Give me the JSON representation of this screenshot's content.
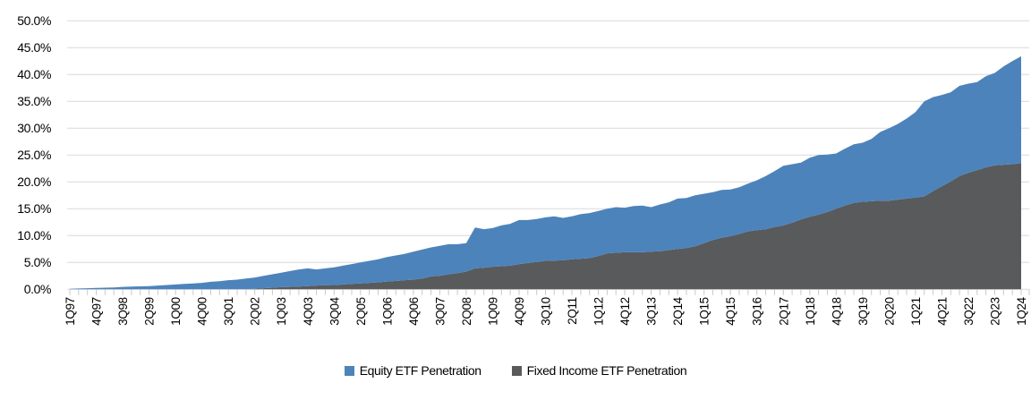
{
  "chart_data": {
    "type": "area",
    "stacked": true,
    "title": "",
    "xlabel": "",
    "ylabel": "",
    "ylim": [
      0,
      50
    ],
    "ytick_step": 5,
    "y_tick_labels": [
      "0.0%",
      "5.0%",
      "10.0%",
      "15.0%",
      "20.0%",
      "25.0%",
      "30.0%",
      "35.0%",
      "40.0%",
      "45.0%",
      "50.0%"
    ],
    "grid": "horizontal",
    "legend_position": "bottom-center",
    "x_label_interval": 3,
    "x_tick_labels_shown": [
      "1Q97",
      "4Q97",
      "3Q98",
      "2Q99",
      "1Q00",
      "4Q00",
      "3Q01",
      "2Q02",
      "1Q03",
      "4Q03",
      "3Q04",
      "2Q05",
      "1Q06",
      "4Q06",
      "3Q07",
      "2Q08",
      "1Q09",
      "4Q09",
      "3Q10",
      "2Q11",
      "1Q12",
      "4Q12",
      "3Q13",
      "2Q14",
      "1Q15",
      "4Q15",
      "3Q16",
      "2Q17",
      "1Q18",
      "4Q18",
      "3Q19",
      "2Q20",
      "1Q21",
      "4Q21",
      "3Q22",
      "2Q23",
      "1Q24"
    ],
    "categories": [
      "1Q97",
      "2Q97",
      "3Q97",
      "4Q97",
      "1Q98",
      "2Q98",
      "3Q98",
      "4Q98",
      "1Q99",
      "2Q99",
      "3Q99",
      "4Q99",
      "1Q00",
      "2Q00",
      "3Q00",
      "4Q00",
      "1Q01",
      "2Q01",
      "3Q01",
      "4Q01",
      "1Q02",
      "2Q02",
      "3Q02",
      "4Q02",
      "1Q03",
      "2Q03",
      "3Q03",
      "4Q03",
      "1Q04",
      "2Q04",
      "3Q04",
      "4Q04",
      "1Q05",
      "2Q05",
      "3Q05",
      "4Q05",
      "1Q06",
      "2Q06",
      "3Q06",
      "4Q06",
      "1Q07",
      "2Q07",
      "3Q07",
      "4Q07",
      "1Q08",
      "2Q08",
      "3Q08",
      "4Q08",
      "1Q09",
      "2Q09",
      "3Q09",
      "4Q09",
      "1Q10",
      "2Q10",
      "3Q10",
      "4Q10",
      "1Q11",
      "2Q11",
      "3Q11",
      "4Q11",
      "1Q12",
      "2Q12",
      "3Q12",
      "4Q12",
      "1Q13",
      "2Q13",
      "3Q13",
      "4Q13",
      "1Q14",
      "2Q14",
      "3Q14",
      "4Q14",
      "1Q15",
      "2Q15",
      "3Q15",
      "4Q15",
      "1Q16",
      "2Q16",
      "3Q16",
      "4Q16",
      "1Q17",
      "2Q17",
      "3Q17",
      "4Q17",
      "1Q18",
      "2Q18",
      "3Q18",
      "4Q18",
      "1Q19",
      "2Q19",
      "3Q19",
      "4Q19",
      "1Q20",
      "2Q20",
      "3Q20",
      "4Q20",
      "1Q21",
      "2Q21",
      "3Q21",
      "4Q21",
      "1Q22",
      "2Q22",
      "3Q22",
      "4Q22",
      "1Q23",
      "2Q23",
      "3Q23",
      "4Q23",
      "1Q24"
    ],
    "bottom_series": "Fixed Income ETF Penetration",
    "series": [
      {
        "name": "Equity ETF Penetration",
        "color": "#4d83bb",
        "values": [
          0.1,
          0.15,
          0.2,
          0.25,
          0.3,
          0.35,
          0.45,
          0.5,
          0.55,
          0.6,
          0.7,
          0.8,
          0.9,
          1.0,
          1.1,
          1.2,
          1.4,
          1.5,
          1.7,
          1.8,
          2.0,
          2.1,
          2.3,
          2.5,
          2.7,
          2.95,
          3.2,
          3.3,
          3.0,
          3.15,
          3.3,
          3.5,
          3.7,
          3.9,
          4.1,
          4.3,
          4.55,
          4.75,
          4.9,
          5.2,
          5.4,
          5.4,
          5.6,
          5.6,
          5.4,
          5.3,
          7.6,
          7.2,
          7.2,
          7.6,
          7.8,
          8.2,
          8.0,
          8.0,
          8.1,
          8.25,
          7.9,
          8.0,
          8.3,
          8.4,
          8.4,
          8.3,
          8.5,
          8.3,
          8.6,
          8.7,
          8.3,
          8.7,
          8.9,
          9.4,
          9.3,
          9.5,
          9.2,
          8.9,
          8.9,
          8.7,
          8.7,
          8.9,
          9.3,
          9.9,
          10.4,
          11.1,
          10.9,
          10.6,
          11.0,
          11.1,
          10.7,
          10.3,
          10.6,
          10.9,
          11.0,
          11.6,
          12.8,
          13.5,
          14.1,
          14.9,
          15.9,
          17.7,
          17.5,
          17.0,
          16.6,
          16.8,
          16.6,
          16.4,
          17.0,
          17.2,
          18.3,
          19.2,
          19.9
        ]
      },
      {
        "name": "Fixed Income ETF Penetration",
        "color": "#595a5c",
        "values": [
          0,
          0,
          0,
          0,
          0,
          0,
          0,
          0,
          0,
          0,
          0,
          0,
          0,
          0,
          0,
          0,
          0,
          0,
          0,
          0,
          0,
          0.1,
          0.2,
          0.3,
          0.4,
          0.45,
          0.5,
          0.6,
          0.7,
          0.75,
          0.8,
          0.9,
          1.0,
          1.1,
          1.2,
          1.3,
          1.45,
          1.55,
          1.7,
          1.8,
          2.0,
          2.4,
          2.5,
          2.8,
          3.0,
          3.3,
          3.9,
          4.0,
          4.2,
          4.3,
          4.4,
          4.7,
          4.9,
          5.1,
          5.3,
          5.35,
          5.4,
          5.6,
          5.7,
          5.8,
          6.2,
          6.7,
          6.8,
          6.9,
          6.9,
          6.9,
          7.0,
          7.1,
          7.3,
          7.5,
          7.7,
          8.0,
          8.6,
          9.2,
          9.6,
          9.9,
          10.3,
          10.8,
          11.0,
          11.2,
          11.6,
          11.9,
          12.4,
          13.0,
          13.5,
          13.9,
          14.4,
          15.0,
          15.6,
          16.1,
          16.3,
          16.4,
          16.5,
          16.5,
          16.7,
          16.9,
          17.1,
          17.3,
          18.3,
          19.2,
          20.1,
          21.1,
          21.7,
          22.2,
          22.7,
          23.1,
          23.2,
          23.3,
          23.5
        ]
      }
    ],
    "colors": {
      "equity_blue": "#4d83bb",
      "fixed_income_gray": "#595a5c",
      "gridline": "#d9d9d9",
      "tick": "#c9c9c9",
      "label_text": "#000000"
    }
  },
  "legend": {
    "items": [
      {
        "label": "Equity ETF Penetration"
      },
      {
        "label": "Fixed Income ETF Penetration"
      }
    ]
  }
}
